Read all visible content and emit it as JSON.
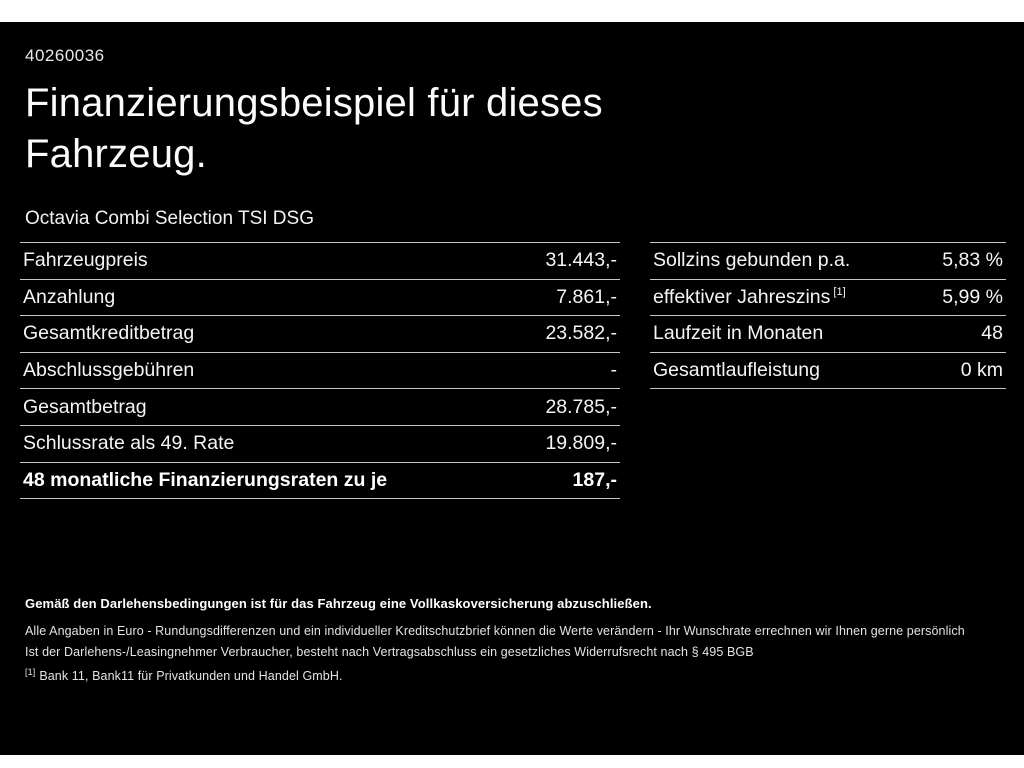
{
  "theme": {
    "background": "#000000",
    "text": "#ffffff",
    "divider": "#c6c6c6"
  },
  "header": {
    "ref_number": "40260036",
    "title_line1": "Finanzierungsbeispiel für dieses",
    "title_line2": "Fahrzeug.",
    "vehicle": "Octavia Combi Selection TSI DSG"
  },
  "left_table": {
    "rows": [
      {
        "label": "Fahrzeugpreis",
        "value": "31.443,-"
      },
      {
        "label": "Anzahlung",
        "value": "7.861,-"
      },
      {
        "label": "Gesamtkreditbetrag",
        "value": "23.582,-"
      },
      {
        "label": "Abschlussgebühren",
        "value": "-"
      },
      {
        "label": "Gesamtbetrag",
        "value": "28.785,-"
      },
      {
        "label": "Schlussrate als 49. Rate",
        "value": "19.809,-"
      },
      {
        "label": "48 monatliche Finanzierungsraten zu je",
        "value": "187,-"
      }
    ]
  },
  "right_table": {
    "rows": [
      {
        "label": "Sollzins gebunden p.a.",
        "value": "5,83 %"
      },
      {
        "label": "effektiver Jahreszins",
        "sup": "[1]",
        "value": "5,99 %"
      },
      {
        "label": "Laufzeit in Monaten",
        "value": "48"
      },
      {
        "label": "Gesamtlaufleistung",
        "value": "0 km"
      }
    ]
  },
  "footnotes": {
    "insurance_note": "Gemäß den Darlehensbedingungen ist für das Fahrzeug eine Vollkaskoversicherung abzuschließen.",
    "euro_note": "Alle Angaben in Euro - Rundungsdifferenzen und ein individueller Kreditschutzbrief können die Werte verändern - Ihr Wunschrate errechnen wir Ihnen gerne persönlich",
    "withdrawal_note": "Ist der Darlehens-/Leasingnehmer Verbraucher, besteht nach Vertragsabschluss ein gesetzliches Widerrufsrecht nach § 495 BGB",
    "bank_marker": "[1]",
    "bank_note": "Bank 11, Bank11 für Privatkunden und Handel GmbH."
  }
}
